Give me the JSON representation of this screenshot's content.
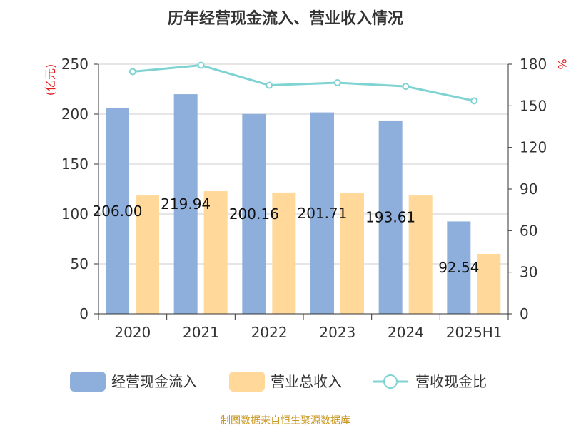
{
  "chart_data": {
    "type": "bar",
    "title": "历年经营现金流入、营业收入情况",
    "categories": [
      "2020",
      "2021",
      "2022",
      "2023",
      "2024",
      "2025H1"
    ],
    "y_left": {
      "unit": "(亿元)",
      "ylim": [
        0,
        250
      ],
      "ticks": [
        "0",
        "50",
        "100",
        "150",
        "200",
        "250"
      ]
    },
    "y_right": {
      "unit": "%",
      "ylim": [
        0,
        180
      ],
      "ticks": [
        "0",
        "30",
        "60",
        "90",
        "120",
        "150",
        "180"
      ]
    },
    "series": [
      {
        "name": "经营现金流入",
        "type": "bar",
        "axis": "left",
        "color": "#8eaedb",
        "values": [
          206.0,
          219.94,
          200.16,
          201.71,
          193.61,
          92.54
        ],
        "labels": [
          "206.00",
          "219.94",
          "200.16",
          "201.71",
          "193.61",
          "92.54"
        ]
      },
      {
        "name": "营业总收入",
        "type": "bar",
        "axis": "left",
        "color": "#ffd89a",
        "values": [
          118.5,
          122.8,
          121.5,
          121.0,
          118.5,
          60.0
        ]
      },
      {
        "name": "营收现金比",
        "type": "line",
        "axis": "right",
        "color": "#7fd3d3",
        "values": [
          174.6,
          179.2,
          164.8,
          166.6,
          164.0,
          153.6
        ]
      }
    ],
    "grid": true,
    "legend": "bottom"
  },
  "source": "制图数据来自恒生聚源数据库"
}
